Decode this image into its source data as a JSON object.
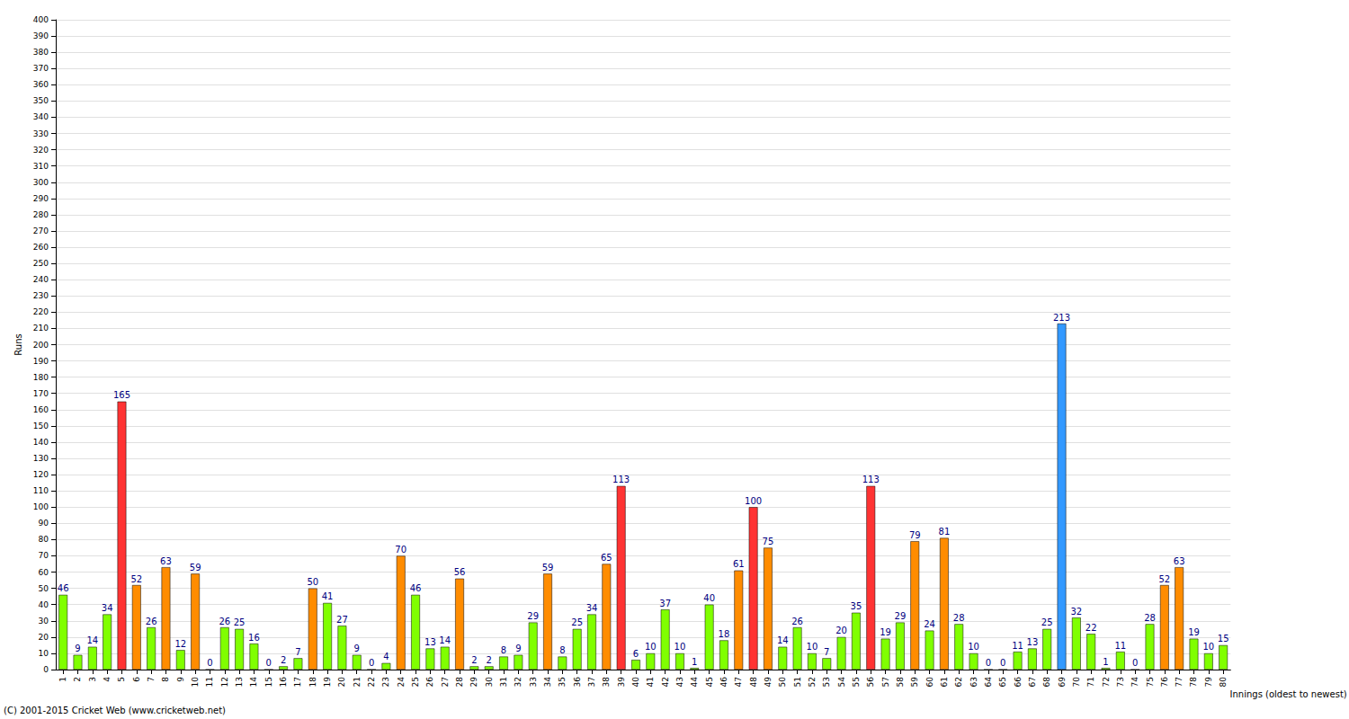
{
  "chart_data": {
    "type": "bar",
    "y_label": "Runs",
    "x_label": "Innings (oldest to newest)",
    "annotation": "(C) 2001-2015 Cricket Web (www.cricketweb.net)",
    "categories": [
      "1",
      "2",
      "3",
      "4",
      "5",
      "6",
      "7",
      "8",
      "9",
      "10",
      "11",
      "12",
      "13",
      "14",
      "15",
      "16",
      "17",
      "18",
      "19",
      "20",
      "21",
      "22",
      "23",
      "24",
      "25",
      "26",
      "27",
      "28",
      "29",
      "30",
      "31",
      "32",
      "33",
      "34",
      "35",
      "36",
      "37",
      "38",
      "39",
      "40",
      "41",
      "42",
      "43",
      "44",
      "45",
      "46",
      "47",
      "48",
      "49",
      "50",
      "51",
      "52",
      "53",
      "54",
      "55",
      "56",
      "57",
      "58",
      "59",
      "60",
      "61",
      "62",
      "63",
      "64",
      "65",
      "66",
      "67",
      "68",
      "69",
      "70",
      "71",
      "72",
      "73",
      "74",
      "75",
      "76",
      "77",
      "78",
      "79",
      "80"
    ],
    "values": [
      46,
      9,
      14,
      34,
      165,
      52,
      26,
      63,
      12,
      59,
      0,
      26,
      25,
      16,
      0,
      2,
      7,
      50,
      41,
      27,
      9,
      0,
      4,
      70,
      46,
      13,
      14,
      56,
      2,
      2,
      8,
      9,
      29,
      59,
      8,
      25,
      34,
      65,
      113,
      6,
      10,
      37,
      10,
      1,
      40,
      18,
      61,
      100,
      75,
      14,
      26,
      10,
      7,
      20,
      35,
      113,
      19,
      29,
      79,
      24,
      81,
      28,
      10,
      0,
      0,
      11,
      13,
      25,
      213,
      32,
      22,
      1,
      11,
      0,
      28,
      52,
      63,
      19,
      10,
      15
    ],
    "colors": [
      "#80ff00",
      "#80ff00",
      "#80ff00",
      "#80ff00",
      "#ff3333",
      "#ff8c00",
      "#80ff00",
      "#ff8c00",
      "#80ff00",
      "#ff8c00",
      "#80ff00",
      "#80ff00",
      "#80ff00",
      "#80ff00",
      "#80ff00",
      "#80ff00",
      "#80ff00",
      "#ff8c00",
      "#80ff00",
      "#80ff00",
      "#80ff00",
      "#80ff00",
      "#80ff00",
      "#ff8c00",
      "#80ff00",
      "#80ff00",
      "#80ff00",
      "#ff8c00",
      "#80ff00",
      "#80ff00",
      "#80ff00",
      "#80ff00",
      "#80ff00",
      "#ff8c00",
      "#80ff00",
      "#80ff00",
      "#80ff00",
      "#ff8c00",
      "#ff3333",
      "#80ff00",
      "#80ff00",
      "#80ff00",
      "#80ff00",
      "#80ff00",
      "#80ff00",
      "#80ff00",
      "#ff8c00",
      "#ff3333",
      "#ff8c00",
      "#80ff00",
      "#80ff00",
      "#80ff00",
      "#80ff00",
      "#80ff00",
      "#80ff00",
      "#ff3333",
      "#80ff00",
      "#80ff00",
      "#ff8c00",
      "#80ff00",
      "#ff8c00",
      "#80ff00",
      "#80ff00",
      "#80ff00",
      "#80ff00",
      "#80ff00",
      "#80ff00",
      "#80ff00",
      "#3399ff",
      "#80ff00",
      "#80ff00",
      "#80ff00",
      "#80ff00",
      "#80ff00",
      "#80ff00",
      "#ff8c00",
      "#ff8c00",
      "#80ff00",
      "#80ff00",
      "#80ff00"
    ],
    "ylim": [
      0,
      400
    ],
    "yticks": [
      0,
      10,
      20,
      30,
      40,
      50,
      60,
      70,
      80,
      90,
      100,
      110,
      120,
      130,
      140,
      150,
      160,
      170,
      180,
      190,
      200,
      210,
      220,
      230,
      240,
      250,
      260,
      270,
      280,
      290,
      300,
      310,
      320,
      330,
      340,
      350,
      360,
      370,
      380,
      390,
      400
    ],
    "grid": true,
    "data_labels": true
  }
}
